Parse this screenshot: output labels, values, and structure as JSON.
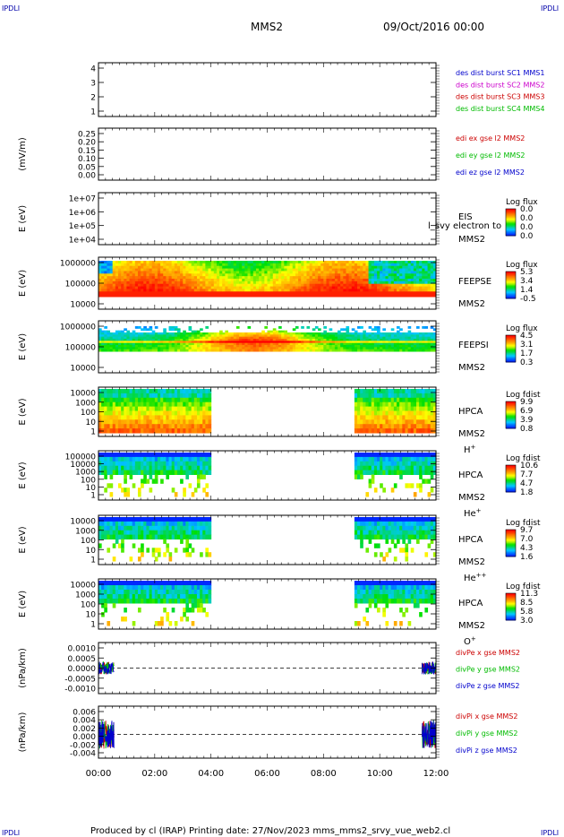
{
  "header": {
    "corner_tl": "IPDLI",
    "corner_tr": "IPDLI",
    "corner_bl": "IPDLI",
    "corner_br": "IPDLI",
    "title": "MMS2",
    "date": "09/Oct/2016 00:00"
  },
  "footer": {
    "text": "Produced by cl (IRAP)   Printing date: 27/Nov/2023   mms_mms2_srvy_vue_web2.cl"
  },
  "colors": {
    "blue": "#0000cc",
    "magenta": "#cc00cc",
    "red": "#cc0000",
    "green": "#00bb00"
  },
  "chart_data": [
    {
      "id": "sc-position",
      "type": "line",
      "ylabel": "",
      "yticks": [
        "4",
        "3",
        "2",
        "1"
      ],
      "ylim": [
        0.5,
        4.5
      ],
      "legend": [
        {
          "text": "des dist burst SC1 MMS1",
          "color": "#0000cc"
        },
        {
          "text": "des dist burst SC2 MMS2",
          "color": "#cc00cc"
        },
        {
          "text": "des dist burst SC3 MMS3",
          "color": "#cc0000"
        },
        {
          "text": "des dist burst SC4 MMS4",
          "color": "#00bb00"
        }
      ],
      "series": []
    },
    {
      "id": "edi-efield",
      "type": "line",
      "ylabel": "(mV/m)",
      "yticks": [
        "0.25",
        "0.20",
        "0.15",
        "0.10",
        "0.05",
        "0.00"
      ],
      "ylim": [
        0.0,
        0.25
      ],
      "legend": [
        {
          "text": "edi ex gse l2 MMS2",
          "color": "#cc0000"
        },
        {
          "text": "edi ey gse l2 MMS2",
          "color": "#00bb00"
        },
        {
          "text": "edi ez gse l2 MMS2",
          "color": "#0000cc"
        }
      ],
      "series": []
    },
    {
      "id": "eis",
      "type": "heatmap",
      "ylabel": "E (eV)",
      "yticks": [
        "1e+07",
        "1e+06",
        "1e+05",
        "1e+04"
      ],
      "ylim": [
        10000,
        10000000
      ],
      "log": true,
      "instrument": [
        "EIS",
        "MMS2"
      ],
      "overlay_text": "l_svy electron to",
      "colorbar": {
        "title": "Log flux",
        "ticks": [
          "0.0",
          "0.0",
          "0.0",
          "0.0"
        ]
      },
      "data": "empty"
    },
    {
      "id": "feepse",
      "type": "heatmap",
      "ylabel": "E (eV)",
      "yticks": [
        "1000000",
        "100000",
        "10000"
      ],
      "ylim": [
        10000,
        1000000
      ],
      "log": true,
      "instrument": [
        "FEEPSE",
        "MMS2"
      ],
      "colorbar": {
        "title": "Log flux",
        "ticks": [
          "5.3",
          "3.4",
          "1.4",
          "-0.5"
        ]
      }
    },
    {
      "id": "feepsi",
      "type": "heatmap",
      "ylabel": "E (eV)",
      "yticks": [
        "1000000",
        "100000",
        "10000"
      ],
      "ylim": [
        10000,
        1000000
      ],
      "log": true,
      "instrument": [
        "FEEPSI",
        "MMS2"
      ],
      "colorbar": {
        "title": "Log flux",
        "ticks": [
          "4.5",
          "3.1",
          "1.7",
          "0.3"
        ]
      }
    },
    {
      "id": "hpca-h",
      "type": "heatmap",
      "ylabel": "E (eV)",
      "yticks": [
        "10000",
        "1000",
        "100",
        "10",
        "1"
      ],
      "ylim": [
        1,
        30000
      ],
      "log": true,
      "instrument": [
        "HPCA",
        "MMS2",
        "H",
        "+"
      ],
      "colorbar": {
        "title": "Log fdist",
        "ticks": [
          "9.9",
          "6.9",
          "3.9",
          "0.8"
        ]
      },
      "data_intervals_hours": [
        [
          0.0,
          4.0
        ],
        [
          9.1,
          12.0
        ]
      ]
    },
    {
      "id": "hpca-he",
      "type": "heatmap",
      "ylabel": "E (eV)",
      "yticks": [
        "100000",
        "10000",
        "1000",
        "100",
        "10",
        "1"
      ],
      "ylim": [
        1,
        100000
      ],
      "log": true,
      "instrument": [
        "HPCA",
        "MMS2",
        "He",
        "+"
      ],
      "colorbar": {
        "title": "Log fdist",
        "ticks": [
          "10.6",
          "7.7",
          "4.7",
          "1.8"
        ]
      },
      "data_intervals_hours": [
        [
          0.0,
          4.0
        ],
        [
          9.1,
          12.0
        ]
      ]
    },
    {
      "id": "hpca-hepp",
      "type": "heatmap",
      "ylabel": "E (eV)",
      "yticks": [
        "10000",
        "1000",
        "100",
        "10",
        "1"
      ],
      "ylim": [
        1,
        30000
      ],
      "log": true,
      "instrument": [
        "HPCA",
        "MMS2",
        "He",
        "++"
      ],
      "colorbar": {
        "title": "Log fdist",
        "ticks": [
          "9.7",
          "7.0",
          "4.3",
          "1.6"
        ]
      },
      "data_intervals_hours": [
        [
          0.0,
          4.0
        ],
        [
          9.1,
          12.0
        ]
      ]
    },
    {
      "id": "hpca-o",
      "type": "heatmap",
      "ylabel": "E (eV)",
      "yticks": [
        "10000",
        "1000",
        "100",
        "10",
        "1"
      ],
      "ylim": [
        1,
        30000
      ],
      "log": true,
      "instrument": [
        "HPCA",
        "MMS2",
        "O",
        "+"
      ],
      "colorbar": {
        "title": "Log fdist",
        "ticks": [
          "11.3",
          "8.5",
          "5.8",
          "3.0"
        ]
      },
      "data_intervals_hours": [
        [
          0.0,
          4.0
        ],
        [
          9.1,
          12.0
        ]
      ]
    },
    {
      "id": "divpe",
      "type": "line",
      "ylabel": "(nPa/km)",
      "yticks": [
        "0.0010",
        "0.0005",
        "0.0000",
        "-0.0005",
        "-0.0010"
      ],
      "ylim": [
        -0.0012,
        0.0012
      ],
      "legend": [
        {
          "text": "divPe x gse MMS2",
          "color": "#cc0000"
        },
        {
          "text": "divPe y gse MMS2",
          "color": "#00bb00"
        },
        {
          "text": "divPe z gse MMS2",
          "color": "#0000cc"
        }
      ],
      "data_intervals_hours": [
        [
          0.0,
          0.55
        ],
        [
          11.5,
          12.0
        ]
      ],
      "amplitude": 0.0003
    },
    {
      "id": "divpi",
      "type": "line",
      "ylabel": "(nPa/km)",
      "yticks": [
        "0.006",
        "0.004",
        "0.002",
        "0.000",
        "-0.002",
        "-0.004"
      ],
      "ylim": [
        -0.005,
        0.006
      ],
      "legend": [
        {
          "text": "divPi x gse MMS2",
          "color": "#cc0000"
        },
        {
          "text": "divPi y gse MMS2",
          "color": "#00bb00"
        },
        {
          "text": "divPi z gse MMS2",
          "color": "#0000cc"
        }
      ],
      "data_intervals_hours": [
        [
          0.0,
          0.55
        ],
        [
          11.5,
          12.0
        ]
      ],
      "amplitude": 0.003
    }
  ],
  "x_axis": {
    "ticks": [
      "00:00",
      "02:00",
      "04:00",
      "06:00",
      "08:00",
      "10:00",
      "12:00"
    ],
    "range_hours": [
      0,
      12
    ]
  }
}
